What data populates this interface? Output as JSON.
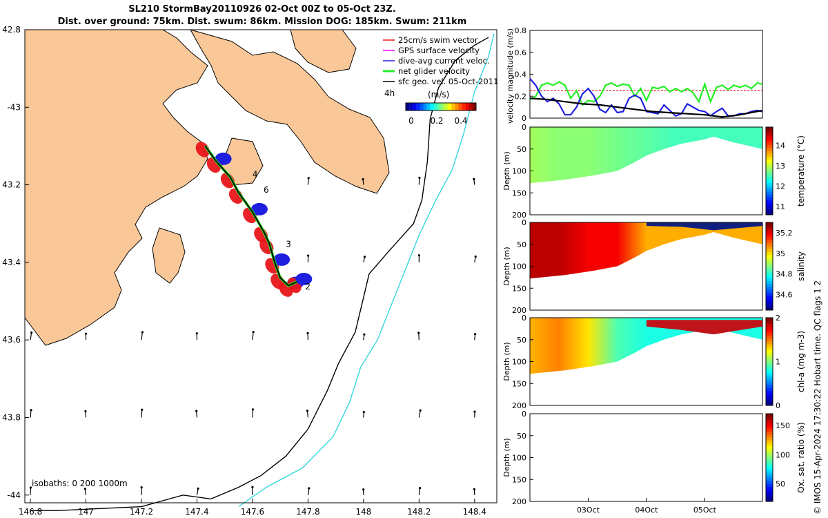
{
  "header": {
    "title_line1": "SL210 StormBay20110926 02-Oct 00Z to 05-Oct 23Z.",
    "title_line2": "Dist. over ground: 75km. Dist. swum: 86km. Mission DOG: 185km. Swum: 211km"
  },
  "side_note": "© IMOS 15-Apr-2024 17:30:22 Hobart time. QC flags 1  2",
  "colors": {
    "land": "#fac898",
    "coast": "#000000",
    "isobath_200": "#000000",
    "isobath_1000": "#33d6dd",
    "swim": "#e8161a",
    "gps": "#ff00ff",
    "dive": "#1f1fe0",
    "net": "#22ee22",
    "geo": "#000000"
  },
  "map": {
    "legend": [
      {
        "label": "25cm/s swim vector",
        "color": "#e8161a"
      },
      {
        "label": "GPS surface velocity",
        "color": "#ff00ff"
      },
      {
        "label": "dive-avg current veloc.",
        "color": "#1f1fe0"
      },
      {
        "label": "net glider velocity",
        "color": "#22ee22"
      },
      {
        "label": "sfc geo. vel. 05-Oct-2011",
        "color": "#000000"
      }
    ],
    "time_label": "4h",
    "colorbar_label": "(m/s)",
    "colorbar_ticks": [
      "0",
      "0.2",
      "0.4"
    ],
    "isobath_label": "isobaths: 0   200  1000m",
    "day_labels": [
      "2",
      "3",
      "4",
      "6"
    ]
  },
  "chart_data": [
    {
      "type": "map",
      "xlim": [
        146.78,
        148.48
      ],
      "ylim": [
        -44.02,
        -42.8
      ],
      "x_ticks": [
        146.8,
        147,
        147.2,
        147.4,
        147.6,
        147.8,
        148,
        148.2,
        148.4
      ],
      "x_tick_labels": [
        "146.8",
        "147",
        "147.2",
        "147.4",
        "147.6",
        "147.8",
        "148",
        "148.2",
        "148.4"
      ],
      "y_ticks": [
        -42.8,
        -43,
        -43.2,
        -43.4,
        -43.6,
        -43.8,
        -44
      ],
      "y_tick_labels": [
        "42.8",
        "-43",
        "43.2",
        "43.4",
        "43.6",
        "43.8",
        "-44"
      ],
      "track": [
        [
          147.43,
          -43.1
        ],
        [
          147.47,
          -43.14
        ],
        [
          147.52,
          -43.18
        ],
        [
          147.55,
          -43.22
        ],
        [
          147.6,
          -43.27
        ],
        [
          147.64,
          -43.32
        ],
        [
          147.66,
          -43.35
        ],
        [
          147.68,
          -43.4
        ],
        [
          147.7,
          -43.44
        ],
        [
          147.73,
          -43.46
        ],
        [
          147.76,
          -43.45
        ]
      ],
      "isobath_200": [
        [
          146.8,
          -44.04
        ],
        [
          146.9,
          -44.04
        ],
        [
          147.2,
          -44.03
        ],
        [
          147.35,
          -44
        ],
        [
          147.45,
          -44.01
        ],
        [
          147.55,
          -43.98
        ],
        [
          147.63,
          -43.95
        ],
        [
          147.72,
          -43.9
        ],
        [
          147.8,
          -43.83
        ],
        [
          147.87,
          -43.73
        ],
        [
          147.91,
          -43.66
        ],
        [
          147.97,
          -43.58
        ],
        [
          148.0,
          -43.49
        ],
        [
          148.02,
          -43.43
        ],
        [
          148.08,
          -43.38
        ],
        [
          148.13,
          -43.34
        ],
        [
          148.18,
          -43.3
        ],
        [
          148.21,
          -43.24
        ],
        [
          148.23,
          -43.14
        ],
        [
          148.24,
          -43.03
        ],
        [
          148.27,
          -42.95
        ],
        [
          148.33,
          -42.88
        ],
        [
          148.4,
          -42.84
        ],
        [
          148.45,
          -42.82
        ]
      ],
      "isobath_1000": [
        [
          147.55,
          -44.03
        ],
        [
          147.65,
          -43.98
        ],
        [
          147.78,
          -43.93
        ],
        [
          147.89,
          -43.85
        ],
        [
          147.95,
          -43.76
        ],
        [
          147.99,
          -43.67
        ],
        [
          148.05,
          -43.6
        ],
        [
          148.1,
          -43.51
        ],
        [
          148.15,
          -43.42
        ],
        [
          148.2,
          -43.33
        ],
        [
          148.26,
          -43.24
        ],
        [
          148.32,
          -43.16
        ],
        [
          148.36,
          -43.07
        ],
        [
          148.4,
          -42.96
        ],
        [
          148.45,
          -42.87
        ],
        [
          148.47,
          -42.81
        ]
      ]
    },
    {
      "type": "line",
      "ylabel": "velocity magnitude (m/s)",
      "ylim": [
        0,
        0.8
      ],
      "y_ticks": [
        0,
        0.2,
        0.4,
        0.6,
        0.8
      ],
      "x_range_days": [
        2.0,
        5.99
      ],
      "series": [
        {
          "name": "swim",
          "color": "#e8161a",
          "x": [
            2.0,
            5.99
          ],
          "y": [
            0.25,
            0.25
          ]
        },
        {
          "name": "net glider velocity",
          "color": "#22ee22",
          "x": [
            2.0,
            2.1,
            2.2,
            2.3,
            2.4,
            2.5,
            2.6,
            2.7,
            2.8,
            2.9,
            3.0,
            3.1,
            3.2,
            3.3,
            3.4,
            3.5,
            3.6,
            3.7,
            3.8,
            3.9,
            4.0,
            4.1,
            4.2,
            4.3,
            4.4,
            4.5,
            4.6,
            4.7,
            4.8,
            4.9,
            5.0,
            5.1,
            5.2,
            5.3,
            5.4,
            5.5,
            5.6,
            5.7,
            5.8,
            5.9,
            5.99
          ],
          "y": [
            0.17,
            0.2,
            0.3,
            0.32,
            0.3,
            0.33,
            0.3,
            0.18,
            0.25,
            0.12,
            0.16,
            0.15,
            0.2,
            0.3,
            0.32,
            0.29,
            0.31,
            0.3,
            0.2,
            0.27,
            0.16,
            0.28,
            0.27,
            0.29,
            0.24,
            0.27,
            0.24,
            0.27,
            0.23,
            0.15,
            0.31,
            0.15,
            0.28,
            0.3,
            0.26,
            0.3,
            0.28,
            0.3,
            0.27,
            0.32,
            0.31
          ]
        },
        {
          "name": "dive-avg current veloc.",
          "color": "#1f1fe0",
          "x": [
            2.0,
            2.1,
            2.2,
            2.3,
            2.4,
            2.5,
            2.6,
            2.7,
            2.8,
            2.9,
            3.0,
            3.1,
            3.2,
            3.3,
            3.4,
            3.5,
            3.6,
            3.7,
            3.8,
            3.9,
            4.0,
            4.1,
            4.2,
            4.3,
            4.4,
            4.5,
            4.6,
            4.7,
            4.8,
            4.9,
            5.0,
            5.1,
            5.2,
            5.3,
            5.4,
            5.5,
            5.6,
            5.7,
            5.8,
            5.9,
            5.99
          ],
          "y": [
            0.36,
            0.3,
            0.2,
            0.15,
            0.18,
            0.13,
            0.03,
            0.03,
            0.1,
            0.22,
            0.27,
            0.2,
            0.08,
            0.05,
            0.12,
            0.05,
            0.06,
            0.18,
            0.21,
            0.18,
            0.06,
            0.05,
            0.04,
            0.12,
            0.07,
            0.02,
            0.04,
            0.13,
            0.1,
            0.07,
            0.06,
            0.02,
            0.06,
            0.09,
            0.02,
            0.02,
            0.04,
            0.04,
            0.06,
            0.07,
            0.06
          ]
        },
        {
          "name": "sfc geo. vel.",
          "color": "#000000",
          "x": [
            2.0,
            2.3,
            2.6,
            2.9,
            3.2,
            3.5,
            3.8,
            4.1,
            4.4,
            4.7,
            5.0,
            5.3,
            5.6,
            5.99
          ],
          "y": [
            0.18,
            0.17,
            0.15,
            0.13,
            0.12,
            0.1,
            0.08,
            0.06,
            0.05,
            0.04,
            0.03,
            0.01,
            0.03,
            0.07
          ]
        }
      ]
    },
    {
      "type": "heatmap",
      "ylabel": "Depth (m)",
      "clabel": "temperature (°C)",
      "ylim": [
        200,
        0
      ],
      "y_ticks": [
        0,
        50,
        100,
        150,
        200
      ],
      "y_tick_labels": [
        "0",
        "50",
        "100",
        "150",
        "200"
      ],
      "clim": [
        10.6,
        14.9
      ],
      "c_ticks": [
        11,
        12,
        13,
        14
      ],
      "c_tick_labels": [
        "11",
        "12",
        "13",
        "14"
      ],
      "bottom": [
        [
          2.0,
          128
        ],
        [
          2.6,
          120
        ],
        [
          3.1,
          110
        ],
        [
          3.5,
          100
        ],
        [
          3.8,
          80
        ],
        [
          4.0,
          65
        ],
        [
          4.3,
          50
        ],
        [
          4.6,
          38
        ],
        [
          5.0,
          28
        ],
        [
          5.15,
          22
        ],
        [
          5.5,
          35
        ],
        [
          5.99,
          50
        ]
      ],
      "cells": [
        [
          2.0,
          12.9
        ],
        [
          2.5,
          12.8
        ],
        [
          3.0,
          12.8
        ],
        [
          3.5,
          12.7
        ],
        [
          4.0,
          12.6
        ],
        [
          4.5,
          12.5
        ],
        [
          5.0,
          12.5
        ],
        [
          5.5,
          12.5
        ],
        [
          5.99,
          12.5
        ]
      ]
    },
    {
      "type": "heatmap",
      "ylabel": "Depth (m)",
      "clabel": "salinity",
      "ylim": [
        200,
        0
      ],
      "y_ticks": [
        0,
        50,
        100,
        150,
        200
      ],
      "y_tick_labels": [
        "0",
        "50",
        "100",
        "150",
        "200"
      ],
      "clim": [
        34.45,
        35.3
      ],
      "c_ticks": [
        34.6,
        34.8,
        35,
        35.2
      ],
      "c_tick_labels": [
        "34.6",
        "34.8",
        "35",
        "35.2"
      ],
      "bottom": [
        [
          2.0,
          128
        ],
        [
          2.6,
          120
        ],
        [
          3.1,
          110
        ],
        [
          3.5,
          100
        ],
        [
          3.8,
          80
        ],
        [
          4.0,
          65
        ],
        [
          4.3,
          50
        ],
        [
          4.6,
          38
        ],
        [
          5.0,
          28
        ],
        [
          5.15,
          22
        ],
        [
          5.5,
          35
        ],
        [
          5.99,
          50
        ]
      ],
      "cells": [
        [
          2.0,
          35.25
        ],
        [
          2.5,
          35.25
        ],
        [
          3.0,
          35.2
        ],
        [
          3.5,
          35.2
        ],
        [
          4.0,
          35.05
        ],
        [
          4.5,
          35.05
        ],
        [
          5.0,
          35.05
        ],
        [
          5.5,
          35.05
        ],
        [
          5.99,
          35.05
        ]
      ]
    },
    {
      "type": "heatmap",
      "ylabel": "Depth (m)",
      "clabel": "chl-a (mg m-3)",
      "ylim": [
        200,
        0
      ],
      "y_ticks": [
        0,
        50,
        100,
        150,
        200
      ],
      "y_tick_labels": [
        "0",
        "50",
        "100",
        "150",
        "200"
      ],
      "clim": [
        0,
        2
      ],
      "c_ticks": [
        0,
        1,
        2
      ],
      "c_tick_labels": [
        "0",
        "1",
        "2"
      ],
      "bottom": [
        [
          2.0,
          128
        ],
        [
          2.6,
          120
        ],
        [
          3.1,
          110
        ],
        [
          3.5,
          100
        ],
        [
          3.8,
          80
        ],
        [
          4.0,
          65
        ],
        [
          4.3,
          50
        ],
        [
          4.6,
          38
        ],
        [
          5.0,
          28
        ],
        [
          5.15,
          22
        ],
        [
          5.5,
          35
        ],
        [
          5.99,
          50
        ]
      ],
      "cells": [
        [
          2.0,
          1.4
        ],
        [
          2.5,
          1.5
        ],
        [
          3.0,
          1.3
        ],
        [
          3.5,
          0.9
        ],
        [
          4.0,
          0.8
        ],
        [
          4.5,
          0.8
        ],
        [
          5.0,
          0.8
        ],
        [
          5.5,
          0.8
        ],
        [
          5.99,
          0.8
        ]
      ]
    },
    {
      "type": "heatmap",
      "ylabel": "Depth (m)",
      "clabel": "Ox. sat. ratio (%)",
      "ylim": [
        200,
        0
      ],
      "y_ticks": [
        0,
        50,
        100,
        150,
        200
      ],
      "y_tick_labels": [
        "0",
        "50",
        "100",
        "150",
        "200"
      ],
      "clim": [
        20,
        170
      ],
      "c_ticks": [
        50,
        100,
        150
      ],
      "c_tick_labels": [
        "50",
        "100",
        "150"
      ],
      "x_ticks": [
        3.0,
        4.0,
        5.0
      ],
      "x_tick_labels": [
        "03Oct",
        "04Oct",
        "05Oct"
      ],
      "cells": []
    }
  ]
}
